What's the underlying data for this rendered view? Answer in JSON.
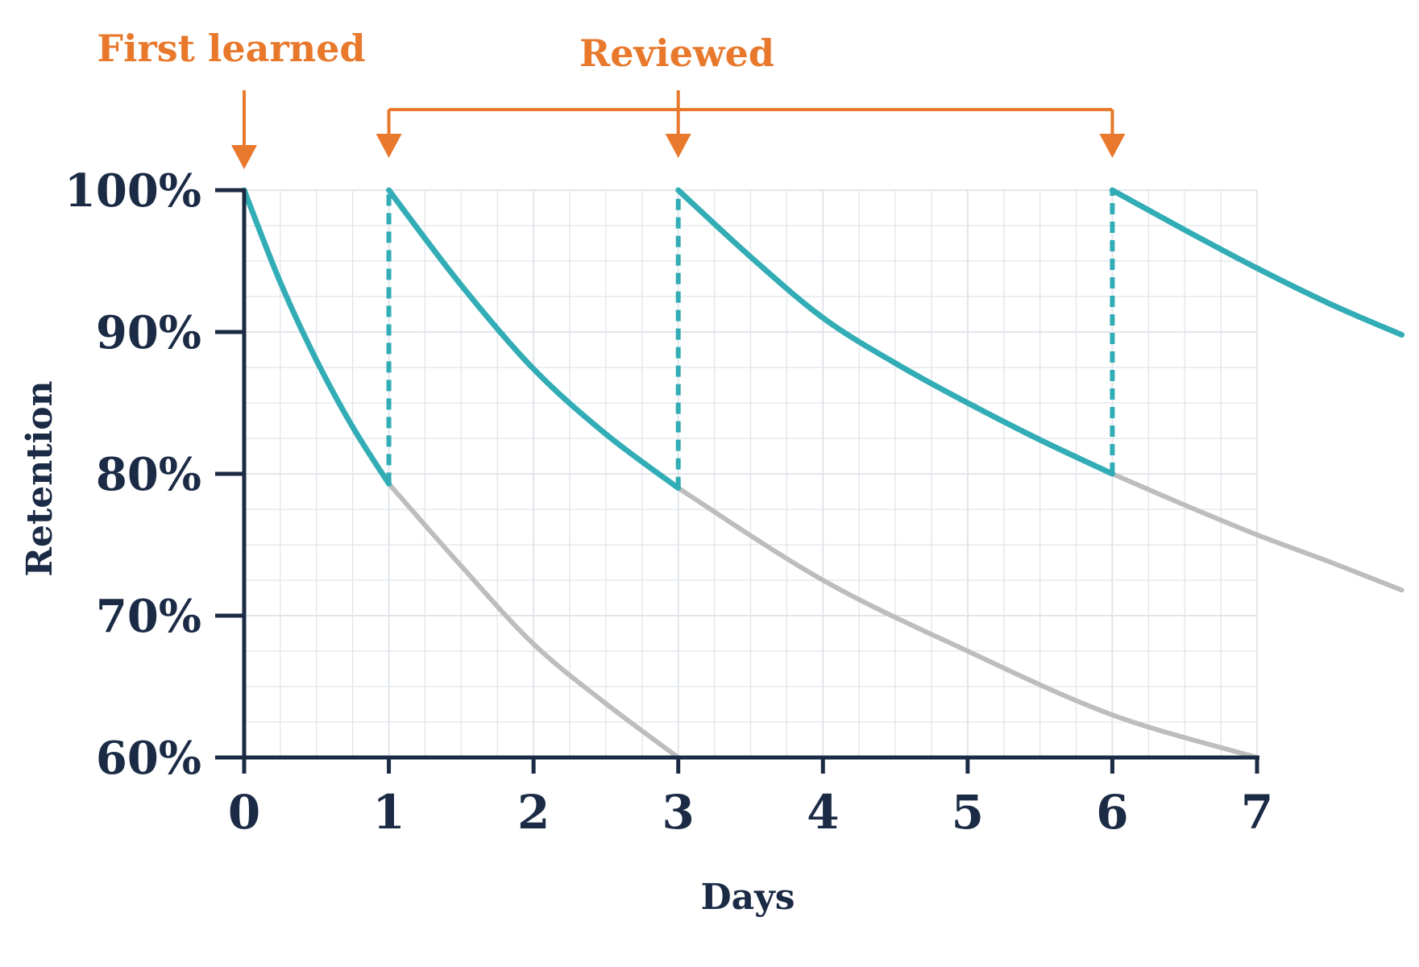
{
  "chart_data": {
    "type": "line",
    "title": "",
    "xlabel": "Days",
    "ylabel": "Retention",
    "xlim": [
      0,
      7
    ],
    "ylim": [
      60,
      100
    ],
    "x_ticks": [
      0,
      1,
      2,
      3,
      4,
      5,
      6,
      7
    ],
    "x_tick_labels": [
      "0",
      "1",
      "2",
      "3",
      "4",
      "5",
      "6",
      "7"
    ],
    "y_ticks": [
      100,
      90,
      80,
      70,
      60
    ],
    "y_tick_labels": [
      "100%",
      "90%",
      "80%",
      "70%",
      "60%"
    ],
    "grid": true,
    "annotations": {
      "first_learned": {
        "label": "First learned",
        "x": 0
      },
      "reviewed": {
        "label": "Reviewed",
        "x": [
          1,
          3,
          6
        ]
      }
    },
    "series_with_review": [
      {
        "x": [
          0,
          0.25,
          0.5,
          0.75,
          1.0
        ],
        "y": [
          100,
          93.5,
          88,
          83.3,
          79.3
        ]
      },
      {
        "x": [
          1.0,
          1.5,
          2.0,
          2.5,
          3.0
        ],
        "y": [
          100,
          93.3,
          87.4,
          82.8,
          79
        ]
      },
      {
        "x": [
          3.0,
          3.5,
          4.0,
          4.5,
          5.0,
          5.5,
          6.0
        ],
        "y": [
          100,
          95.3,
          91,
          87.8,
          85,
          82.4,
          80
        ]
      },
      {
        "x": [
          6.0,
          6.5,
          7.0,
          7.5,
          8.0
        ],
        "y": [
          100,
          97.2,
          94.5,
          92,
          89.8
        ]
      }
    ],
    "series_without_review": [
      {
        "x": [
          1.0,
          1.5,
          2.0,
          2.5,
          3.0
        ],
        "y": [
          79.3,
          73.5,
          68,
          63.8,
          60
        ]
      },
      {
        "x": [
          3.0,
          4.0,
          5.0,
          6.0,
          7.0
        ],
        "y": [
          79,
          72.5,
          67.5,
          63,
          60
        ]
      },
      {
        "x": [
          6.0,
          6.5,
          7.0,
          7.5,
          8.0
        ],
        "y": [
          80,
          77.8,
          75.7,
          73.8,
          71.8
        ]
      }
    ],
    "colors": {
      "review_curve": "#32adb6",
      "forgetting_curve": "#bdbdbd",
      "annotation": "#e8782b",
      "axis": "#1c2b45",
      "grid": "#e1e5ea"
    }
  }
}
